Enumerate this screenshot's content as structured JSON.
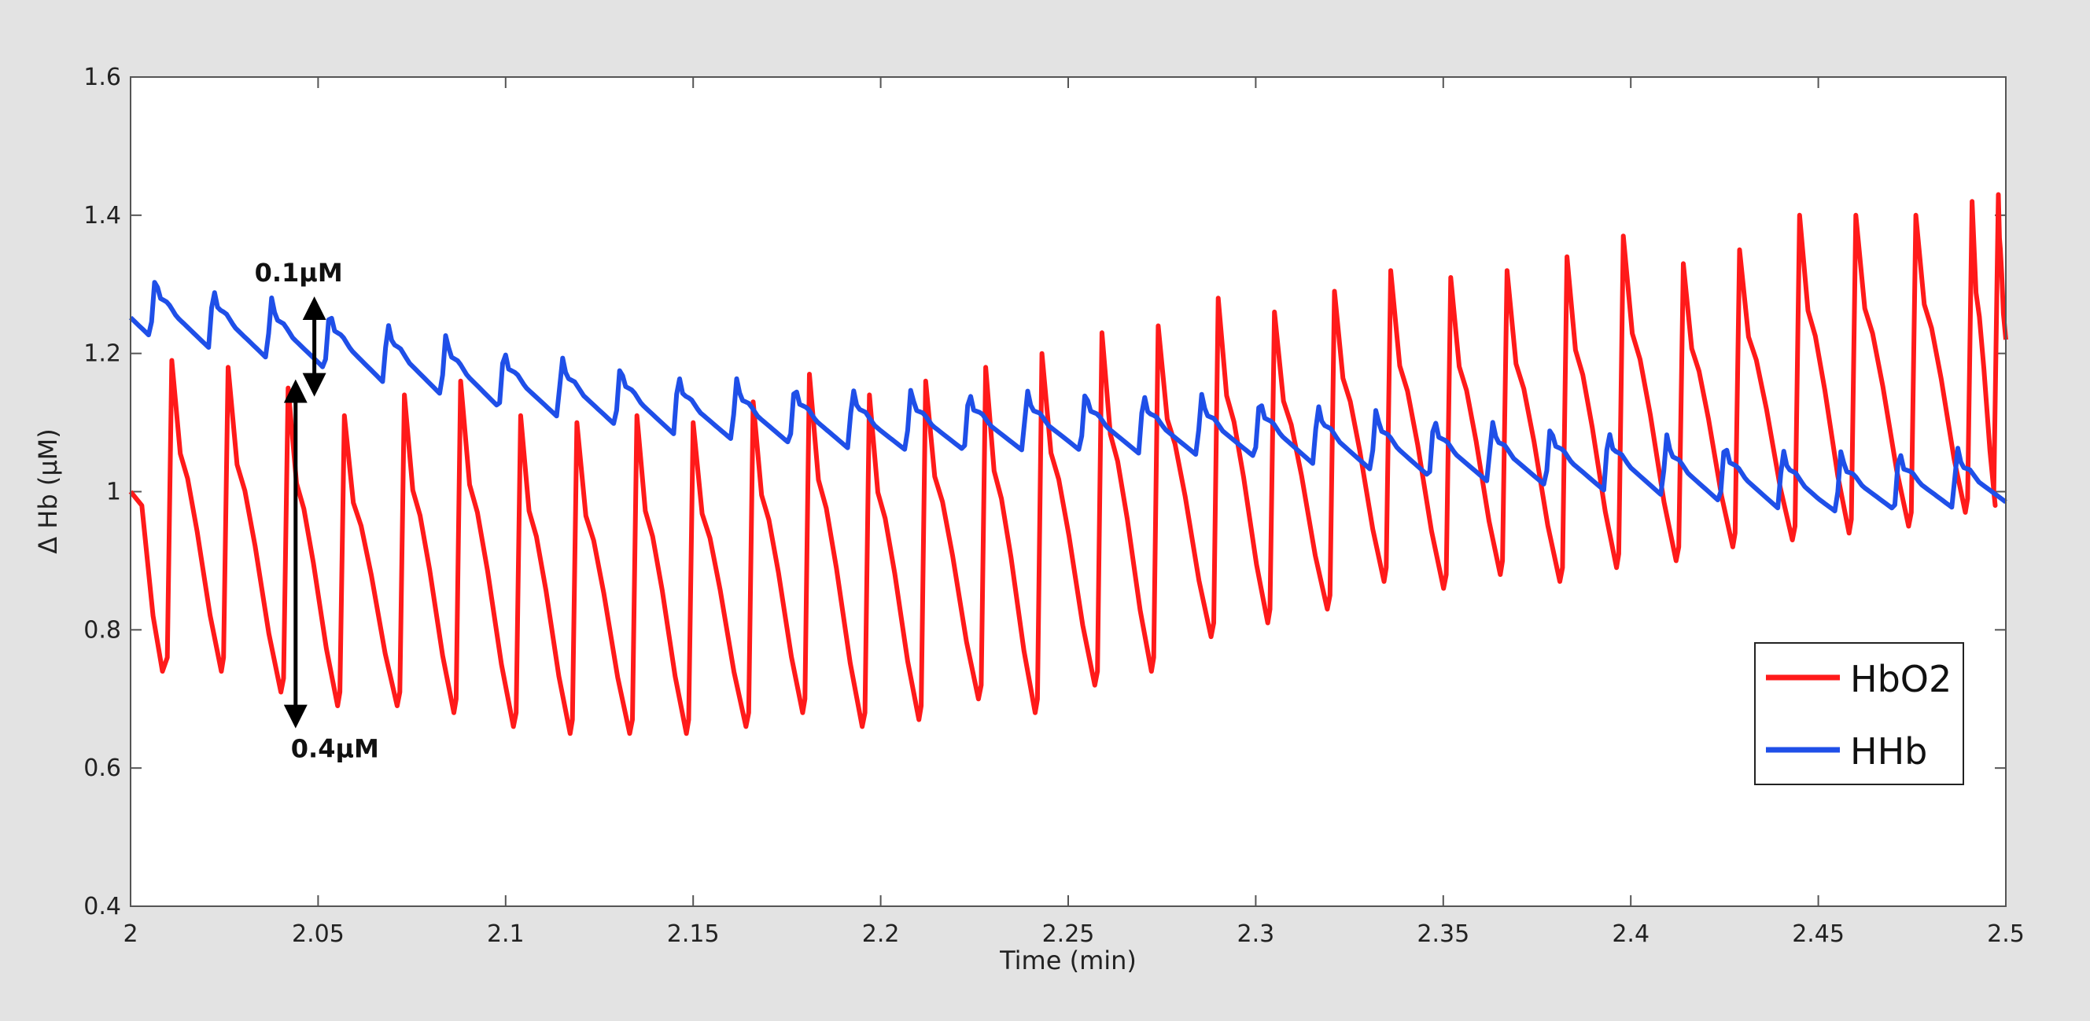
{
  "chart_data": {
    "type": "line",
    "xlabel": "Time (min)",
    "ylabel": "Δ Hb (μM)",
    "xlim": [
      2,
      2.5
    ],
    "ylim": [
      0.4,
      1.6
    ],
    "x_ticks": [
      "2",
      "2.05",
      "2.1",
      "2.15",
      "2.2",
      "2.25",
      "2.3",
      "2.35",
      "2.4",
      "2.45",
      "2.5"
    ],
    "y_ticks": [
      "0.4",
      "0.6",
      "0.8",
      "1",
      "1.2",
      "1.4",
      "1.6"
    ],
    "grid": false,
    "legend_position": "bottom-right",
    "cardiac_period_min": 0.0155,
    "series": [
      {
        "name": "HbO2",
        "color": "#ff1a1a",
        "description": "cardiac pulsation, peaks marked as [time, peak, trough-before-next]",
        "cycles": [
          [
            2.011,
            1.19,
            0.74
          ],
          [
            2.026,
            1.18,
            0.71
          ],
          [
            2.042,
            1.15,
            0.69
          ],
          [
            2.057,
            1.11,
            0.69
          ],
          [
            2.073,
            1.14,
            0.68
          ],
          [
            2.088,
            1.16,
            0.66
          ],
          [
            2.104,
            1.11,
            0.65
          ],
          [
            2.119,
            1.1,
            0.65
          ],
          [
            2.135,
            1.11,
            0.65
          ],
          [
            2.15,
            1.1,
            0.66
          ],
          [
            2.166,
            1.13,
            0.68
          ],
          [
            2.181,
            1.17,
            0.66
          ],
          [
            2.197,
            1.14,
            0.67
          ],
          [
            2.212,
            1.16,
            0.7
          ],
          [
            2.228,
            1.18,
            0.68
          ],
          [
            2.243,
            1.2,
            0.72
          ],
          [
            2.259,
            1.23,
            0.74
          ],
          [
            2.274,
            1.24,
            0.79
          ],
          [
            2.29,
            1.28,
            0.81
          ],
          [
            2.305,
            1.26,
            0.83
          ],
          [
            2.321,
            1.29,
            0.87
          ],
          [
            2.336,
            1.32,
            0.86
          ],
          [
            2.352,
            1.31,
            0.88
          ],
          [
            2.367,
            1.32,
            0.87
          ],
          [
            2.383,
            1.34,
            0.89
          ],
          [
            2.398,
            1.37,
            0.9
          ],
          [
            2.414,
            1.33,
            0.92
          ],
          [
            2.429,
            1.35,
            0.93
          ],
          [
            2.445,
            1.4,
            0.94
          ],
          [
            2.46,
            1.4,
            0.95
          ],
          [
            2.476,
            1.4,
            0.97
          ],
          [
            2.491,
            1.42,
            0.98
          ],
          [
            2.498,
            1.43,
            1.22
          ]
        ]
      },
      {
        "name": "HHb",
        "color": "#1f4fe8",
        "description": "smaller pulsation, slow decline from about 1.27 to 1.02",
        "trend": [
          [
            2.0,
            1.27
          ],
          [
            2.05,
            1.22
          ],
          [
            2.1,
            1.16
          ],
          [
            2.15,
            1.12
          ],
          [
            2.2,
            1.1
          ],
          [
            2.25,
            1.1
          ],
          [
            2.3,
            1.09
          ],
          [
            2.35,
            1.06
          ],
          [
            2.4,
            1.04
          ],
          [
            2.45,
            1.01
          ],
          [
            2.5,
            1.02
          ]
        ],
        "pulse_amplitude": 0.09
      }
    ],
    "annotations": [
      {
        "text": "0.1μM",
        "x": 2.049,
        "y_from": 1.15,
        "y_to": 1.27
      },
      {
        "text": "0.4μM",
        "x": 2.044,
        "y_from": 0.67,
        "y_to": 1.15
      }
    ]
  }
}
